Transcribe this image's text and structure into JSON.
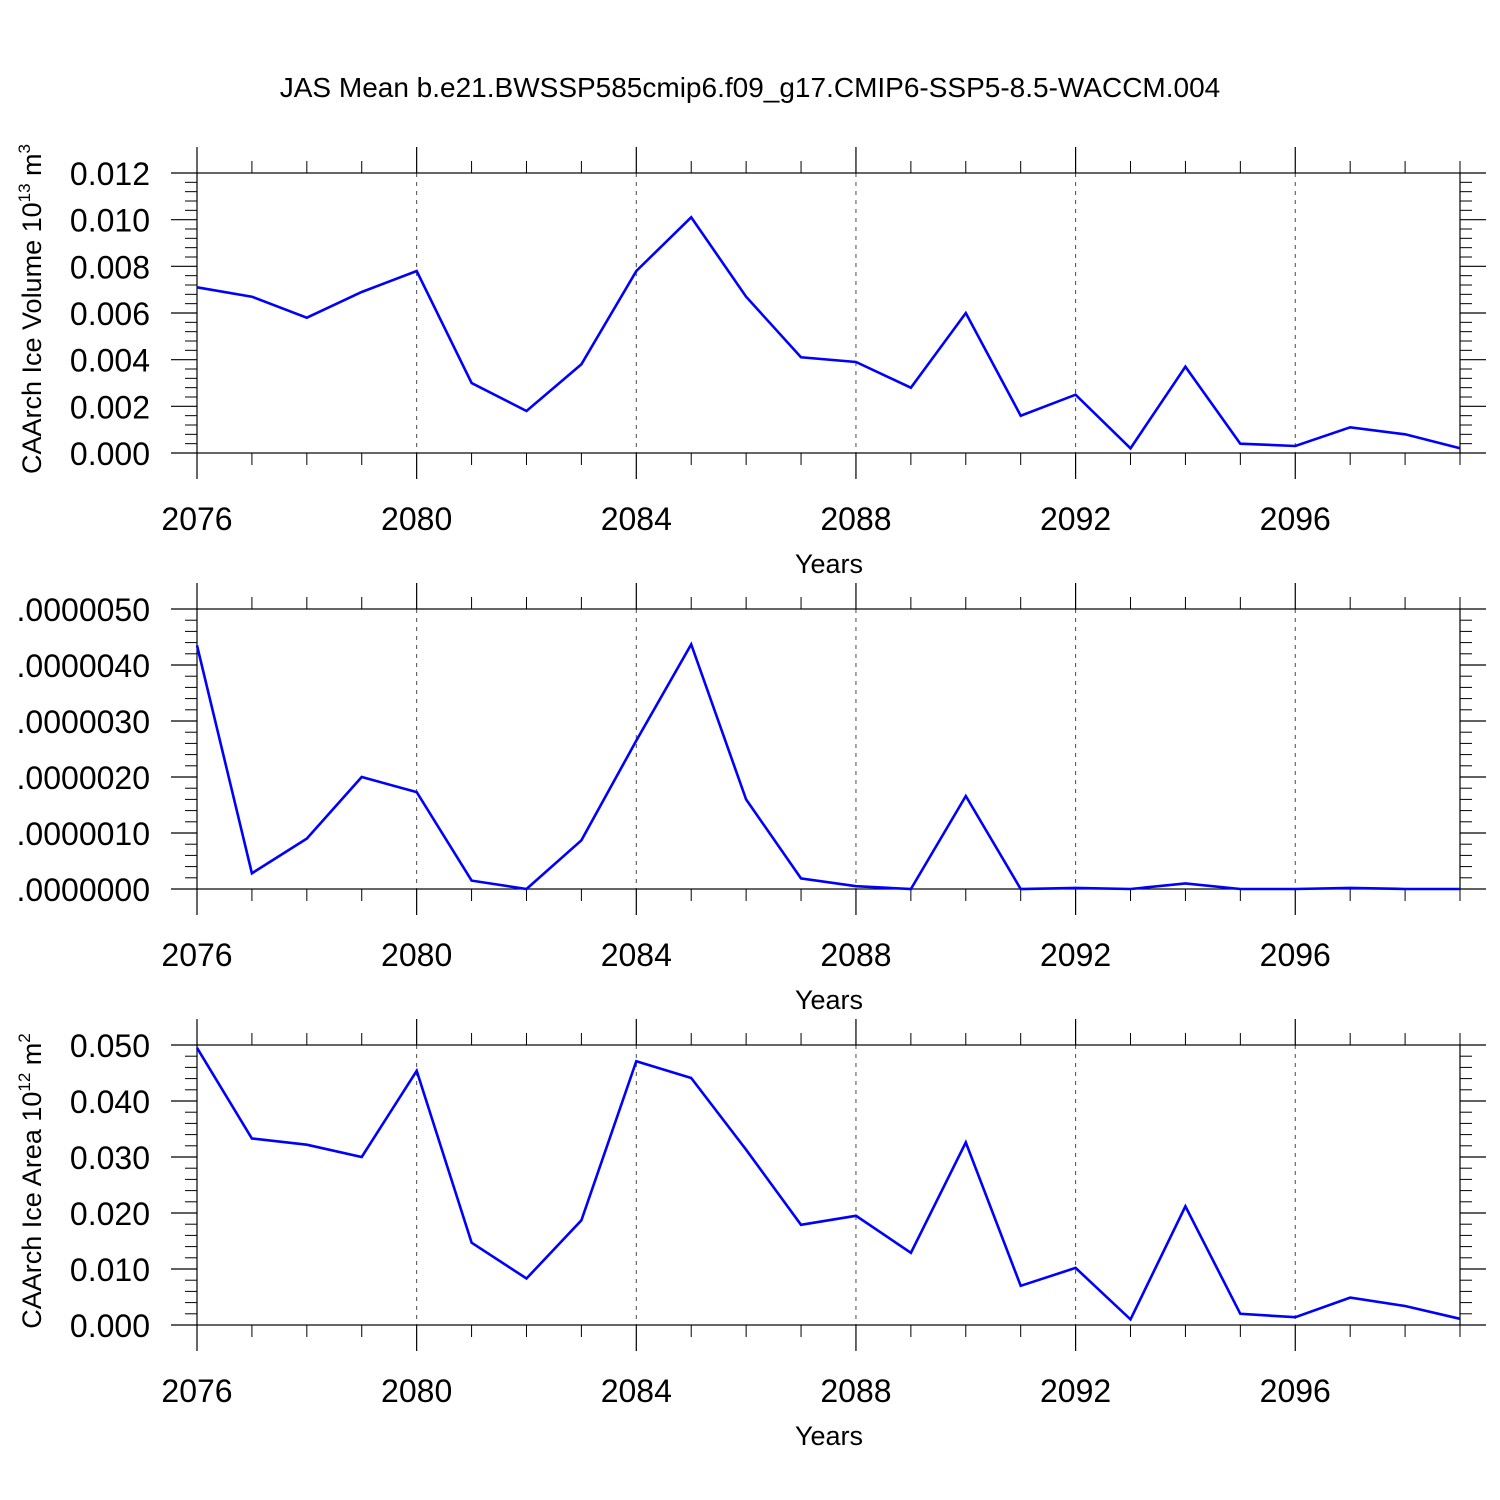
{
  "title": "JAS Mean b.e21.BWSSP585cmip6.f09_g17.CMIP6-SSP5-8.5-WACCM.004",
  "colors": {
    "line": "#0000ff",
    "axis": "#000000",
    "grid": "#000000"
  },
  "chart_data": [
    {
      "type": "line",
      "xlabel": "Years",
      "ylabel": "CAArch Ice Volume 10",
      "ylabel_exp": "13",
      "ylabel_unit": " m",
      "ylabel_unit_exp": "3",
      "xlim": [
        2076,
        2099
      ],
      "ylim": [
        0,
        0.012
      ],
      "x_ticks": [
        2076,
        2080,
        2084,
        2088,
        2092,
        2096
      ],
      "y_ticks": [
        0,
        0.002,
        0.004,
        0.006,
        0.008,
        0.01,
        0.012
      ],
      "y_tick_labels": [
        "0.000",
        "0.002",
        "0.004",
        "0.006",
        "0.008",
        "0.010",
        "0.012"
      ],
      "grid": "dashed vertical at major x ticks",
      "x": [
        2076,
        2077,
        2078,
        2079,
        2080,
        2081,
        2082,
        2083,
        2084,
        2085,
        2086,
        2087,
        2088,
        2089,
        2090,
        2091,
        2092,
        2093,
        2094,
        2095,
        2096,
        2097,
        2098,
        2099
      ],
      "series": [
        {
          "values": [
            0.0071,
            0.0067,
            0.0058,
            0.0069,
            0.0078,
            0.003,
            0.0018,
            0.0038,
            0.0078,
            0.0101,
            0.0067,
            0.0041,
            0.0039,
            0.0028,
            0.006,
            0.0016,
            0.0025,
            0.0002,
            0.0037,
            0.0004,
            0.0003,
            0.0011,
            0.0008,
            0.0002
          ]
        }
      ]
    },
    {
      "type": "line",
      "xlabel": "Years",
      "ylabel": "",
      "xlim": [
        2076,
        2099
      ],
      "ylim": [
        0,
        5e-06
      ],
      "x_ticks": [
        2076,
        2080,
        2084,
        2088,
        2092,
        2096
      ],
      "y_ticks": [
        0,
        1e-06,
        2e-06,
        3e-06,
        4e-06,
        5e-06
      ],
      "y_tick_labels": [
        ".0000000",
        ".0000010",
        ".0000020",
        ".0000030",
        ".0000040",
        ".0000050"
      ],
      "grid": "dashed vertical at major x ticks",
      "x": [
        2076,
        2077,
        2078,
        2079,
        2080,
        2081,
        2082,
        2083,
        2084,
        2085,
        2086,
        2087,
        2088,
        2089,
        2090,
        2091,
        2092,
        2093,
        2094,
        2095,
        2096,
        2097,
        2098,
        2099
      ],
      "series": [
        {
          "values": [
            4.35e-06,
            2.8e-07,
            9e-07,
            2e-06,
            1.73e-06,
            1.5e-07,
            0.0,
            8.7e-07,
            2.65e-06,
            4.37e-06,
            1.6e-06,
            1.9e-07,
            5e-08,
            0.0,
            1.66e-06,
            0.0,
            2e-08,
            0.0,
            1e-07,
            0.0,
            0.0,
            2e-08,
            0.0,
            0.0
          ]
        }
      ]
    },
    {
      "type": "line",
      "xlabel": "Years",
      "ylabel": "CAArch Ice Area 10",
      "ylabel_exp": "12",
      "ylabel_unit": " m",
      "ylabel_unit_exp": "2",
      "xlim": [
        2076,
        2099
      ],
      "ylim": [
        0,
        0.05
      ],
      "x_ticks": [
        2076,
        2080,
        2084,
        2088,
        2092,
        2096
      ],
      "y_ticks": [
        0,
        0.01,
        0.02,
        0.03,
        0.04,
        0.05
      ],
      "y_tick_labels": [
        "0.000",
        "0.010",
        "0.020",
        "0.030",
        "0.040",
        "0.050"
      ],
      "grid": "dashed vertical at major x ticks",
      "x": [
        2076,
        2077,
        2078,
        2079,
        2080,
        2081,
        2082,
        2083,
        2084,
        2085,
        2086,
        2087,
        2088,
        2089,
        2090,
        2091,
        2092,
        2093,
        2094,
        2095,
        2096,
        2097,
        2098,
        2099
      ],
      "series": [
        {
          "values": [
            0.0495,
            0.0333,
            0.0322,
            0.03,
            0.0454,
            0.0147,
            0.0083,
            0.0187,
            0.0471,
            0.0441,
            0.0313,
            0.0179,
            0.0195,
            0.0129,
            0.0326,
            0.007,
            0.0102,
            0.001,
            0.0212,
            0.002,
            0.0014,
            0.0049,
            0.0034,
            0.0011
          ]
        }
      ]
    }
  ]
}
